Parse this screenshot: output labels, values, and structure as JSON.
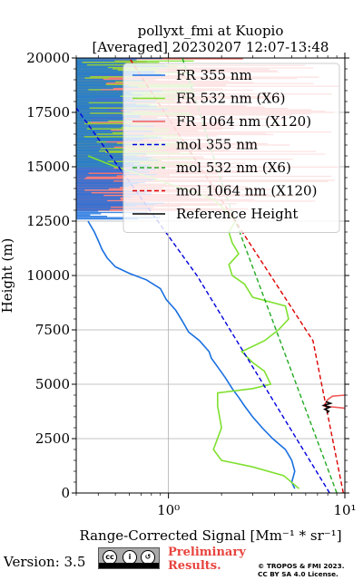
{
  "chart_data": {
    "type": "line",
    "title_line1": "pollyxt_fmi at Kuopio",
    "title_line2": "[Averaged] 20230207 12:07-13:48",
    "xlabel": "Range-Corrected Signal [Mm⁻¹ * sr⁻¹]",
    "ylabel": "Height (m)",
    "x_scale": "log",
    "xlim": [
      0.3,
      10
    ],
    "ylim": [
      0,
      20000
    ],
    "x_ticks": [
      {
        "value": 1,
        "label": "10⁰"
      },
      {
        "value": 10,
        "label": "10¹"
      }
    ],
    "y_ticks": [
      0,
      2500,
      5000,
      7500,
      10000,
      12500,
      15000,
      17500,
      20000
    ],
    "grid": true,
    "legend_position": "top-right",
    "series": [
      {
        "name": "FR 355 nm",
        "color": "#1a70e0",
        "style": "solid",
        "points": [
          [
            5.2,
            200
          ],
          [
            5.0,
            500
          ],
          [
            5.2,
            1000
          ],
          [
            5.0,
            1500
          ],
          [
            4.6,
            2000
          ],
          [
            3.9,
            2500
          ],
          [
            3.4,
            3000
          ],
          [
            3.0,
            3500
          ],
          [
            2.7,
            4000
          ],
          [
            2.5,
            4400
          ],
          [
            2.3,
            4800
          ],
          [
            2.1,
            5300
          ],
          [
            1.9,
            5800
          ],
          [
            1.75,
            6200
          ],
          [
            1.7,
            6500
          ],
          [
            1.5,
            7000
          ],
          [
            1.3,
            7400
          ],
          [
            1.2,
            7900
          ],
          [
            1.1,
            8400
          ],
          [
            0.97,
            8900
          ],
          [
            0.9,
            9400
          ],
          [
            0.75,
            9800
          ],
          [
            0.6,
            10100
          ],
          [
            0.5,
            10400
          ],
          [
            0.45,
            10800
          ],
          [
            0.42,
            11200
          ],
          [
            0.4,
            11600
          ],
          [
            0.38,
            12000
          ],
          [
            0.35,
            12500
          ]
        ]
      },
      {
        "name": "FR 532 nm (X6)",
        "color": "#7fe030",
        "style": "solid",
        "points": [
          [
            5.5,
            200
          ],
          [
            4.5,
            800
          ],
          [
            3.0,
            1200
          ],
          [
            2.0,
            1500
          ],
          [
            1.8,
            2000
          ],
          [
            2.0,
            3000
          ],
          [
            1.9,
            4000
          ],
          [
            1.9,
            4600
          ],
          [
            3.0,
            4800
          ],
          [
            3.8,
            5000
          ],
          [
            3.5,
            5600
          ],
          [
            3.0,
            6000
          ],
          [
            2.6,
            6500
          ],
          [
            3.5,
            7000
          ],
          [
            4.2,
            7500
          ],
          [
            4.8,
            8000
          ],
          [
            4.6,
            8600
          ],
          [
            3.0,
            9000
          ],
          [
            2.7,
            9600
          ],
          [
            2.3,
            10000
          ],
          [
            2.2,
            10500
          ],
          [
            2.5,
            11000
          ],
          [
            2.3,
            11500
          ],
          [
            2.2,
            12000
          ],
          [
            2.4,
            12500
          ],
          [
            2.1,
            13000
          ],
          [
            1.8,
            13500
          ],
          [
            1.2,
            14000
          ],
          [
            0.8,
            14500
          ],
          [
            0.5,
            15000
          ],
          [
            0.35,
            15500
          ]
        ]
      },
      {
        "name": "FR 1064 nm (X120)",
        "color": "#f05a5a",
        "style": "solid",
        "points": [
          [
            10,
            4500
          ],
          [
            8.5,
            4450
          ],
          [
            8.0,
            4300
          ],
          [
            7.6,
            4000
          ],
          [
            10,
            3900
          ]
        ]
      },
      {
        "name": "mol 355 nm",
        "color": "#0000dd",
        "style": "dashed",
        "points": [
          [
            8.2,
            0
          ],
          [
            1.45,
            10000
          ],
          [
            0.3,
            17700
          ]
        ]
      },
      {
        "name": "mol 532 nm (X6)",
        "color": "#22aa22",
        "style": "dashed",
        "points": [
          [
            9.0,
            0
          ],
          [
            2.05,
            14000
          ],
          [
            1.2,
            20000
          ]
        ]
      },
      {
        "name": "mol 1064 nm (X120)",
        "color": "#dd0000",
        "style": "dashed",
        "points": [
          [
            9.8,
            0
          ],
          [
            6.6,
            7000
          ],
          [
            0.6,
            20000
          ]
        ]
      },
      {
        "name": "Reference Height",
        "color": "#000000",
        "style": "solid",
        "points": [
          [
            7.8,
            4200
          ],
          [
            8.3,
            4120
          ],
          [
            7.6,
            4030
          ],
          [
            8.2,
            3940
          ],
          [
            7.7,
            3850
          ],
          [
            8.1,
            3760
          ],
          [
            7.9,
            3680
          ]
        ]
      }
    ]
  },
  "footer": {
    "version": "Version: 3.5",
    "preliminary_line1": "Preliminary",
    "preliminary_line2": "Results.",
    "copyright_line1": "© TROPOS & FMI 2023.",
    "copyright_line2": "CC BY SA 4.0 License.",
    "cc_badge_text": "BY SA"
  }
}
